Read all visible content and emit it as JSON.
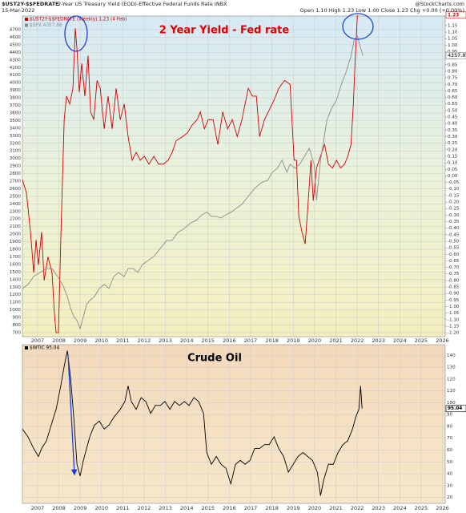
{
  "header": {
    "symbol": "$UST2Y-$$FEDRATE",
    "description": "2-Year US Treasury Yield (EOD)-Effective Federal Funds Rate INBX",
    "source": "@StockCharts.com",
    "date": "15-Mar-2022",
    "quote": "Open 1.10 High 1.23 Low 1.00 Close 1.23 Chg +0.00 (+0.00%)"
  },
  "chart_data": [
    {
      "type": "line",
      "annotation": "2 Year Yield - Fed rate",
      "annotation_color": "#e00000",
      "grid": true,
      "xlim": [
        2006.29,
        2026.13
      ],
      "xticks": [
        2007,
        2008,
        2009,
        2010,
        2011,
        2012,
        2013,
        2014,
        2015,
        2016,
        2017,
        2018,
        2019,
        2020,
        2021,
        2022,
        2023,
        2024,
        2025,
        2026
      ],
      "ylim": [
        647,
        4880
      ],
      "yticks": [
        700,
        800,
        900,
        1000,
        1100,
        1200,
        1300,
        1400,
        1500,
        1600,
        1700,
        1800,
        1900,
        2000,
        2100,
        2200,
        2300,
        2400,
        2500,
        2600,
        2700,
        2800,
        2900,
        3000,
        3100,
        3200,
        3300,
        3400,
        3500,
        3600,
        3700,
        3800,
        3900,
        4000,
        4100,
        4200,
        4300,
        4400,
        4500,
        4600,
        4700
      ],
      "y2lim": [
        -1.23,
        1.223
      ],
      "y2ticks": [
        1.15,
        {
          "value": 1.1,
          "label": "1.10"
        },
        1.05,
        {
          "value": 1,
          "label": "1.00"
        },
        0.95,
        {
          "value": 0.9,
          "label": "0.90"
        },
        0.85,
        {
          "value": 0.8,
          "label": "0.80"
        },
        0.75,
        {
          "value": 0.7,
          "label": "0.70"
        },
        0.65,
        {
          "value": 0.6,
          "label": "0.60"
        },
        0.55,
        {
          "value": 0.5,
          "label": "0.50"
        },
        0.45,
        {
          "value": 0.4,
          "label": "0.40"
        },
        0.35,
        {
          "value": 0.3,
          "label": "0.30"
        },
        0.25,
        {
          "value": 0.2,
          "label": "0.20"
        },
        0.15,
        {
          "value": 0.1,
          "label": "0.10"
        },
        0.05,
        {
          "value": 0,
          "label": "0.00"
        },
        -0.05,
        {
          "value": -0.1,
          "label": "-0.10"
        },
        -0.15,
        {
          "value": -0.2,
          "label": "-0.20"
        },
        -0.25,
        {
          "value": -0.3,
          "label": "-0.30"
        },
        -0.35,
        {
          "value": -0.4,
          "label": "-0.40"
        },
        -0.45,
        {
          "value": -0.5,
          "label": "-0.50"
        },
        -0.55,
        {
          "value": -0.6,
          "label": "-0.60"
        },
        -0.65,
        {
          "value": -0.7,
          "label": "-0.70"
        },
        -0.75,
        {
          "value": -0.8,
          "label": "-0.80"
        },
        -0.85,
        {
          "value": -0.9,
          "label": "-0.90"
        },
        -0.95,
        {
          "value": -1,
          "label": "-1.00"
        },
        -1.05,
        {
          "value": -1.1,
          "label": "-1.10"
        },
        -1.15,
        {
          "value": -1.2,
          "label": "-1.20"
        }
      ],
      "series": [
        {
          "name": "$UST2Y-$$FEDRATE (Weekly) 1.23 (4 Feb)",
          "color": "#d00000",
          "axis": "y2",
          "x": [
            2006.29,
            2006.48,
            2006.67,
            2006.82,
            2006.93,
            2007.04,
            2007.19,
            2007.31,
            2007.49,
            2007.68,
            2007.79,
            2007.87,
            2007.98,
            2008.09,
            2008.25,
            2008.36,
            2008.51,
            2008.66,
            2008.77,
            2008.85,
            2008.96,
            2009.07,
            2009.22,
            2009.37,
            2009.49,
            2009.64,
            2009.79,
            2009.94,
            2010.13,
            2010.31,
            2010.5,
            2010.69,
            2010.88,
            2011.07,
            2011.25,
            2011.44,
            2011.63,
            2011.82,
            2012.01,
            2012.23,
            2012.46,
            2012.68,
            2012.91,
            2013.13,
            2013.32,
            2013.51,
            2013.81,
            2014.04,
            2014.26,
            2014.49,
            2014.64,
            2014.83,
            2015.01,
            2015.24,
            2015.46,
            2015.69,
            2015.92,
            2016.14,
            2016.37,
            2016.59,
            2016.89,
            2017.08,
            2017.27,
            2017.42,
            2017.65,
            2017.83,
            2018.1,
            2018.32,
            2018.59,
            2018.85,
            2019.04,
            2019.15,
            2019.26,
            2019.41,
            2019.56,
            2019.68,
            2019.83,
            2019.94,
            2020.09,
            2020.28,
            2020.47,
            2020.65,
            2020.84,
            2021.03,
            2021.22,
            2021.41,
            2021.56,
            2021.71,
            2021.82,
            2021.9,
            2022.01
          ],
          "values": [
            -0.03,
            -0.13,
            -0.43,
            -0.74,
            -0.49,
            -0.68,
            -0.43,
            -0.8,
            -0.62,
            -0.74,
            -1.05,
            -1.2,
            -1.2,
            -0.49,
            0.43,
            0.61,
            0.55,
            0.67,
            1.13,
            0.97,
            0.64,
            0.86,
            0.61,
            0.92,
            0.49,
            0.43,
            0.73,
            0.67,
            0.36,
            0.61,
            0.36,
            0.67,
            0.43,
            0.55,
            0.3,
            0.12,
            0.18,
            0.12,
            0.15,
            0.09,
            0.15,
            0.09,
            0.09,
            0.12,
            0.18,
            0.27,
            0.3,
            0.33,
            0.39,
            0.43,
            0.49,
            0.36,
            0.43,
            0.43,
            0.24,
            0.49,
            0.36,
            0.43,
            0.3,
            0.43,
            0.67,
            0.61,
            0.61,
            0.3,
            0.43,
            0.49,
            0.58,
            0.67,
            0.73,
            0.7,
            0.12,
            0.12,
            -0.31,
            -0.43,
            -0.52,
            -0.25,
            0.12,
            -0.19,
            0.06,
            0.15,
            0.24,
            0.09,
            0.06,
            0.12,
            0.06,
            0.09,
            0.15,
            0.24,
            0.55,
            0.86,
            1.23
          ]
        },
        {
          "name": "$SPX 4357.86",
          "color": "#8c8c8c",
          "axis": "y",
          "x": [
            2006.29,
            2006.55,
            2006.82,
            2007.12,
            2007.42,
            2007.68,
            2007.94,
            2008.17,
            2008.4,
            2008.55,
            2008.7,
            2008.85,
            2009.0,
            2009.15,
            2009.3,
            2009.45,
            2009.67,
            2009.9,
            2010.13,
            2010.35,
            2010.58,
            2010.8,
            2011.07,
            2011.25,
            2011.48,
            2011.7,
            2011.93,
            2012.19,
            2012.46,
            2012.76,
            2013.06,
            2013.32,
            2013.58,
            2013.89,
            2014.19,
            2014.45,
            2014.71,
            2014.94,
            2015.16,
            2015.39,
            2015.61,
            2015.84,
            2016.07,
            2016.33,
            2016.59,
            2016.89,
            2017.19,
            2017.49,
            2017.8,
            2018.02,
            2018.25,
            2018.47,
            2018.7,
            2018.85,
            2019.07,
            2019.3,
            2019.53,
            2019.75,
            2019.98,
            2020.09,
            2020.28,
            2020.58,
            2020.8,
            2021.03,
            2021.26,
            2021.48,
            2021.71,
            2021.86,
            2022.01,
            2022.16,
            2022.27
          ],
          "values": [
            1283,
            1336,
            1442,
            1494,
            1547,
            1547,
            1442,
            1336,
            1177,
            1019,
            913,
            860,
            754,
            913,
            1071,
            1124,
            1177,
            1283,
            1336,
            1283,
            1442,
            1494,
            1442,
            1547,
            1547,
            1494,
            1600,
            1653,
            1706,
            1812,
            1918,
            1918,
            2023,
            2076,
            2150,
            2182,
            2256,
            2288,
            2235,
            2235,
            2214,
            2256,
            2288,
            2341,
            2394,
            2500,
            2605,
            2679,
            2711,
            2817,
            2870,
            2976,
            2817,
            2923,
            2870,
            2923,
            3029,
            3134,
            2923,
            2447,
            2976,
            3505,
            3663,
            3769,
            3981,
            4139,
            4351,
            4563,
            4616,
            4457,
            4357.86
          ]
        }
      ]
    },
    {
      "type": "line",
      "annotation": "Crude Oil",
      "annotation_color": "#000000",
      "grid": true,
      "y_axis_side": "right",
      "xlim": [
        2006.29,
        2026.13
      ],
      "xticks": [
        2007,
        2008,
        2009,
        2010,
        2011,
        2012,
        2013,
        2014,
        2015,
        2016,
        2017,
        2018,
        2019,
        2020,
        2021,
        2022,
        2023,
        2024,
        2025,
        2026
      ],
      "ylim": [
        15,
        149
      ],
      "yticks": [
        20,
        30,
        40,
        50,
        60,
        70,
        80,
        90,
        100,
        110,
        120,
        130,
        140
      ],
      "series": [
        {
          "name": "$WTIC 95.04",
          "color": "#000000",
          "axis": "y",
          "x": [
            2006.29,
            2006.55,
            2006.82,
            2007.04,
            2007.19,
            2007.42,
            2007.64,
            2007.87,
            2008.09,
            2008.25,
            2008.4,
            2008.55,
            2008.7,
            2008.85,
            2009.0,
            2009.15,
            2009.3,
            2009.45,
            2009.67,
            2009.9,
            2010.13,
            2010.35,
            2010.58,
            2010.88,
            2011.1,
            2011.25,
            2011.4,
            2011.63,
            2011.86,
            2012.08,
            2012.31,
            2012.53,
            2012.76,
            2012.98,
            2013.21,
            2013.43,
            2013.66,
            2013.89,
            2014.11,
            2014.34,
            2014.56,
            2014.79,
            2014.94,
            2015.16,
            2015.39,
            2015.61,
            2015.84,
            2016.07,
            2016.29,
            2016.52,
            2016.74,
            2016.97,
            2017.19,
            2017.42,
            2017.65,
            2017.87,
            2018.1,
            2018.32,
            2018.55,
            2018.77,
            2019.0,
            2019.22,
            2019.45,
            2019.68,
            2019.9,
            2020.13,
            2020.28,
            2020.43,
            2020.65,
            2020.88,
            2021.1,
            2021.33,
            2021.56,
            2021.78,
            2021.93,
            2022.08,
            2022.16,
            2022.23
          ],
          "values": [
            77.8,
            71.2,
            61.3,
            54.6,
            61.3,
            67.9,
            81.1,
            94.4,
            114.2,
            130.8,
            144,
            120.8,
            87.7,
            48,
            38.1,
            51.3,
            61.3,
            71.2,
            81.1,
            84.4,
            77.8,
            81.1,
            87.7,
            94.4,
            101,
            114.2,
            101,
            94.4,
            104.3,
            101,
            91,
            97.7,
            97.7,
            101,
            94.4,
            101,
            97.7,
            101,
            97.7,
            104.3,
            101,
            91,
            57.9,
            48,
            54.6,
            48,
            44.7,
            31.5,
            48,
            51.3,
            48,
            51.3,
            61.3,
            61.3,
            64.6,
            64.6,
            71.2,
            61.3,
            54.6,
            41.4,
            48,
            54.6,
            57.9,
            54.6,
            51.3,
            41.4,
            21.5,
            34.8,
            48,
            48,
            57.9,
            64.6,
            67.9,
            77.8,
            87.7,
            94.4,
            114.2,
            95.04
          ]
        }
      ]
    }
  ]
}
